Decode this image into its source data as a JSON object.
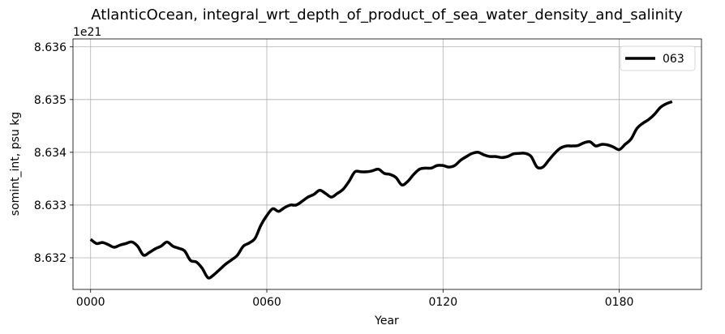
{
  "chart_data": {
    "type": "line",
    "title": "AtlanticOcean, integral_wrt_depth_of_product_of_sea_water_density_and_salinity",
    "xlabel": "Year",
    "ylabel": "somint_int, psu kg",
    "y_offset_label": "1e21",
    "xlim": [
      -6,
      208
    ],
    "ylim": [
      8.6314,
      8.63615
    ],
    "x_ticks": [
      0,
      60,
      120,
      180
    ],
    "x_tick_labels": [
      "0000",
      "0060",
      "0120",
      "0180"
    ],
    "y_ticks": [
      8.632,
      8.633,
      8.634,
      8.635,
      8.636
    ],
    "y_tick_labels": [
      "8.632",
      "8.633",
      "8.634",
      "8.635",
      "8.636"
    ],
    "grid": true,
    "legend_position": "top-right",
    "series": [
      {
        "name": "063",
        "color": "#000000",
        "x": [
          0,
          2,
          4,
          6,
          8,
          10,
          12,
          14,
          16,
          18,
          20,
          22,
          24,
          26,
          28,
          30,
          32,
          34,
          36,
          38,
          40,
          42,
          44,
          46,
          48,
          50,
          52,
          54,
          56,
          58,
          60,
          62,
          64,
          66,
          68,
          70,
          72,
          74,
          76,
          78,
          80,
          82,
          84,
          86,
          88,
          90,
          92,
          94,
          96,
          98,
          100,
          102,
          104,
          106,
          108,
          110,
          112,
          114,
          116,
          118,
          120,
          122,
          124,
          126,
          128,
          130,
          132,
          134,
          136,
          138,
          140,
          142,
          144,
          146,
          148,
          150,
          152,
          154,
          156,
          158,
          160,
          162,
          164,
          166,
          168,
          170,
          172,
          174,
          176,
          178,
          180,
          182,
          184,
          186,
          188,
          190,
          192,
          194,
          196,
          198
        ],
        "values": [
          8.63235,
          8.63227,
          8.63229,
          8.63225,
          8.6322,
          8.63224,
          8.63227,
          8.6323,
          8.63222,
          8.63205,
          8.6321,
          8.63217,
          8.63222,
          8.6323,
          8.63222,
          8.63218,
          8.63213,
          8.63195,
          8.63192,
          8.6318,
          8.63162,
          8.63168,
          8.63178,
          8.63188,
          8.63196,
          8.63205,
          8.63222,
          8.63228,
          8.63237,
          8.63262,
          8.6328,
          8.63293,
          8.63288,
          8.63295,
          8.633,
          8.633,
          8.63307,
          8.63315,
          8.6332,
          8.63328,
          8.63322,
          8.63315,
          8.63322,
          8.6333,
          8.63345,
          8.63363,
          8.63363,
          8.63363,
          8.63365,
          8.63368,
          8.6336,
          8.63358,
          8.63352,
          8.63338,
          8.63345,
          8.63358,
          8.63368,
          8.6337,
          8.6337,
          8.63375,
          8.63375,
          8.63372,
          8.63375,
          8.63385,
          8.63392,
          8.63398,
          8.634,
          8.63395,
          8.63392,
          8.63392,
          8.6339,
          8.63392,
          8.63397,
          8.63398,
          8.63398,
          8.63392,
          8.63372,
          8.63372,
          8.63385,
          8.63398,
          8.63408,
          8.63412,
          8.63412,
          8.63413,
          8.63418,
          8.6342,
          8.63412,
          8.63415,
          8.63414,
          8.6341,
          8.63405,
          8.63415,
          8.63425,
          8.63445,
          8.63455,
          8.63462,
          8.63472,
          8.63485,
          8.63492,
          8.63496
        ]
      }
    ]
  }
}
